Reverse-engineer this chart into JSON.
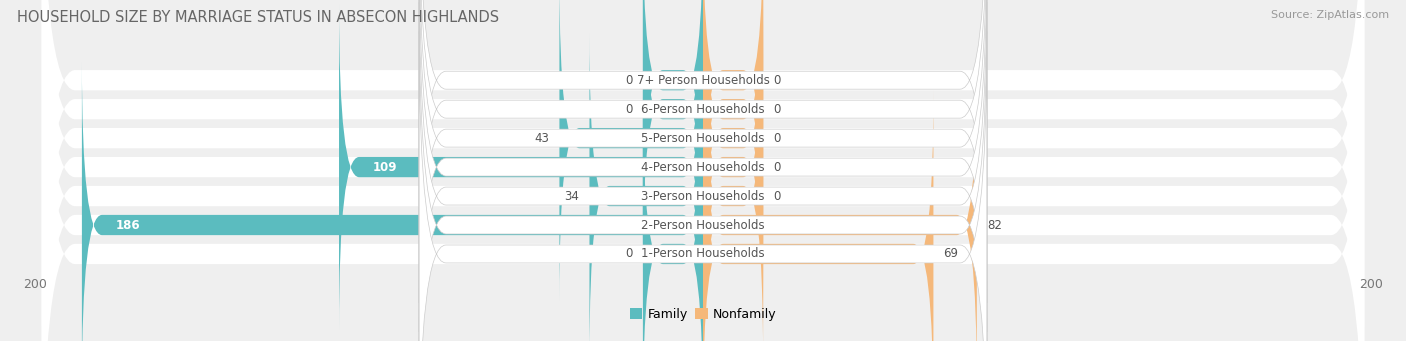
{
  "title": "HOUSEHOLD SIZE BY MARRIAGE STATUS IN ABSECON HIGHLANDS",
  "source": "Source: ZipAtlas.com",
  "categories": [
    "7+ Person Households",
    "6-Person Households",
    "5-Person Households",
    "4-Person Households",
    "3-Person Households",
    "2-Person Households",
    "1-Person Households"
  ],
  "family_values": [
    0,
    0,
    43,
    109,
    34,
    186,
    0
  ],
  "nonfamily_values": [
    0,
    0,
    0,
    0,
    0,
    82,
    69
  ],
  "family_color": "#5bbcbf",
  "nonfamily_color": "#f5b87a",
  "xlim": 200,
  "background_color": "#efefef",
  "bar_row_color": "#ffffff",
  "stub_size": 18,
  "title_fontsize": 10.5,
  "label_fontsize": 8.5,
  "tick_fontsize": 9,
  "source_fontsize": 8
}
